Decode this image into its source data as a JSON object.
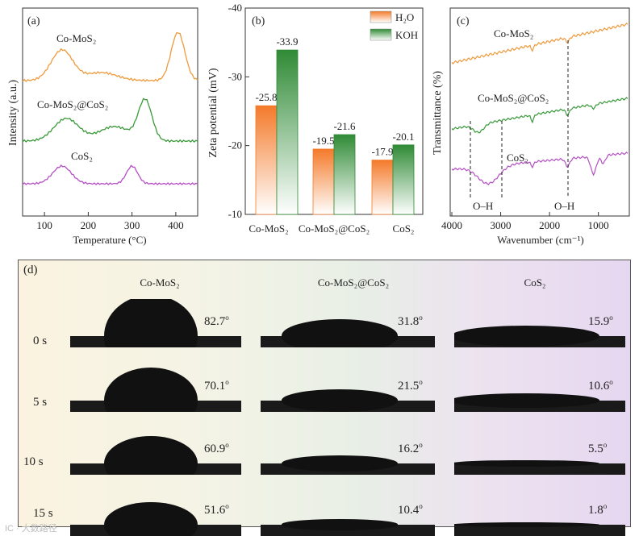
{
  "panel_a": {
    "tag": "(a)",
    "xlabel": "Temperature (°C)",
    "ylabel": "Intensity (a.u.)",
    "xticks": [
      "100",
      "200",
      "300",
      "400"
    ],
    "series_labels": [
      "Co-MoS₂",
      "Co-MoS₂@CoS₂",
      "CoS₂"
    ],
    "colors": [
      "#ef9a3c",
      "#3a9a3a",
      "#b44fc4"
    ]
  },
  "chart_data": {
    "type": "bar",
    "title": "(b)",
    "categories": [
      "Co-MoS₂",
      "Co-MoS₂@CoS₂",
      "CoS₂"
    ],
    "series": [
      {
        "name": "H₂O",
        "values": [
          -25.8,
          -19.5,
          -17.9
        ],
        "color": "#f47a2a"
      },
      {
        "name": "KOH",
        "values": [
          -33.9,
          -21.6,
          -20.1
        ],
        "color": "#2f8a35"
      }
    ],
    "value_labels": {
      "H2O": [
        "-25.8",
        "-19.5",
        "-17.9"
      ],
      "KOH": [
        "-33.9",
        "-21.6",
        "-20.1"
      ]
    },
    "ylabel": "Zeta potential (mV)",
    "ylim": [
      -10,
      -40
    ],
    "yticks": [
      "-40",
      "-30",
      "-20",
      "-10"
    ],
    "legend": "top-right"
  },
  "panel_c": {
    "tag": "(c)",
    "xlabel": "Wavenumber (cm⁻¹)",
    "ylabel": "Transmittance (%)",
    "xticks": [
      "4000",
      "3000",
      "2000",
      "1000"
    ],
    "series_labels": [
      "Co-MoS₂",
      "Co-MoS₂@CoS₂",
      "CoS₂"
    ],
    "annotations": [
      "O–H",
      "O–H"
    ]
  },
  "panel_d": {
    "tag": "(d)",
    "columns": [
      "Co-MoS₂",
      "Co-MoS₂@CoS₂",
      "CoS₂"
    ],
    "times": [
      "0 s",
      "5 s",
      "10 s",
      "15 s"
    ],
    "contact_angles_deg": [
      [
        82.7,
        31.8,
        15.9
      ],
      [
        70.1,
        21.5,
        10.6
      ],
      [
        60.9,
        16.2,
        5.5
      ],
      [
        51.6,
        10.4,
        1.8
      ]
    ],
    "angle_labels": [
      [
        "82.7",
        "31.8",
        "15.9"
      ],
      [
        "70.1",
        "21.5",
        "10.6"
      ],
      [
        "60.9",
        "16.2",
        "5.5"
      ],
      [
        "51.6",
        "10.4",
        "1.8"
      ]
    ],
    "degree_mark": "o"
  },
  "watermark": "IC · 大数路径"
}
